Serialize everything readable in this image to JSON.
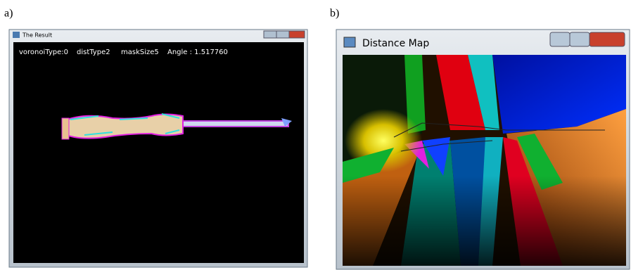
{
  "panels": [
    {
      "label": "a)",
      "window": {
        "title": "The Result",
        "overlay": [
          "voronoiType:0",
          "distType2",
          "maskSize5",
          "Angle : 1.517760"
        ]
      }
    },
    {
      "label": "b)",
      "window": {
        "title": "Distance Map"
      }
    }
  ]
}
